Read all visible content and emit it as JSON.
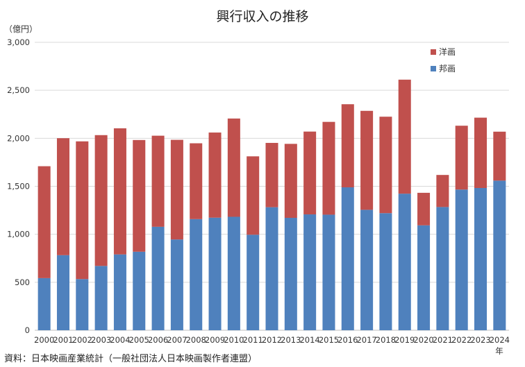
{
  "chart_data": {
    "type": "bar",
    "stacked": true,
    "title": "興行収入の推移",
    "y_unit": "（億円）",
    "x_unit": "年",
    "ylim": [
      0,
      3000
    ],
    "y_ticks": [
      0,
      500,
      1000,
      1500,
      2000,
      2500,
      3000
    ],
    "y_tick_labels": [
      "0",
      "500",
      "1,000",
      "1,500",
      "2,000",
      "2,500",
      "3,000"
    ],
    "grid": true,
    "legend_position": "top-right",
    "categories": [
      "2000",
      "2001",
      "2002",
      "2003",
      "2004",
      "2005",
      "2006",
      "2007",
      "2008",
      "2009",
      "2010",
      "2011",
      "2012",
      "2013",
      "2014",
      "2015",
      "2016",
      "2017",
      "2018",
      "2019",
      "2020",
      "2021",
      "2022",
      "2023",
      "2024"
    ],
    "series": [
      {
        "name": "邦画",
        "color": "#4f81bd",
        "values": [
          543,
          782,
          533,
          670,
          790,
          818,
          1078,
          946,
          1158,
          1173,
          1182,
          995,
          1282,
          1171,
          1207,
          1204,
          1489,
          1255,
          1220,
          1423,
          1093,
          1284,
          1466,
          1482,
          1559
        ]
      },
      {
        "name": "洋画",
        "color": "#c0504d",
        "values": [
          1166,
          1219,
          1435,
          1363,
          1314,
          1164,
          949,
          1038,
          790,
          887,
          1024,
          817,
          670,
          771,
          863,
          967,
          866,
          1031,
          1005,
          1188,
          339,
          334,
          665,
          733,
          510
        ]
      }
    ],
    "legend": [
      {
        "name": "洋画",
        "color": "#c0504d"
      },
      {
        "name": "邦画",
        "color": "#4f81bd"
      }
    ]
  },
  "source": "資料：日本映画産業統計（一般社団法人日本映画製作者連盟）"
}
